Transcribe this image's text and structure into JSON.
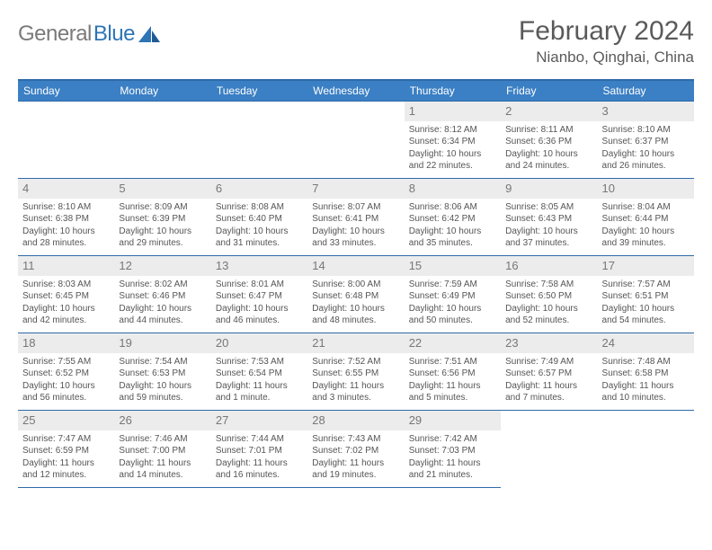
{
  "logo": {
    "word1": "General",
    "word2": "Blue"
  },
  "title": "February 2024",
  "location": "Nianbo, Qinghai, China",
  "weekdays": [
    "Sunday",
    "Monday",
    "Tuesday",
    "Wednesday",
    "Thursday",
    "Friday",
    "Saturday"
  ],
  "colors": {
    "header_bg": "#3b7fc4",
    "header_border": "#2e6aa8",
    "daynum_bg": "#ececec",
    "text": "#555"
  },
  "weeks": [
    [
      null,
      null,
      null,
      null,
      {
        "n": "1",
        "sr": "8:12 AM",
        "ss": "6:34 PM",
        "dl": "10 hours and 22 minutes."
      },
      {
        "n": "2",
        "sr": "8:11 AM",
        "ss": "6:36 PM",
        "dl": "10 hours and 24 minutes."
      },
      {
        "n": "3",
        "sr": "8:10 AM",
        "ss": "6:37 PM",
        "dl": "10 hours and 26 minutes."
      }
    ],
    [
      {
        "n": "4",
        "sr": "8:10 AM",
        "ss": "6:38 PM",
        "dl": "10 hours and 28 minutes."
      },
      {
        "n": "5",
        "sr": "8:09 AM",
        "ss": "6:39 PM",
        "dl": "10 hours and 29 minutes."
      },
      {
        "n": "6",
        "sr": "8:08 AM",
        "ss": "6:40 PM",
        "dl": "10 hours and 31 minutes."
      },
      {
        "n": "7",
        "sr": "8:07 AM",
        "ss": "6:41 PM",
        "dl": "10 hours and 33 minutes."
      },
      {
        "n": "8",
        "sr": "8:06 AM",
        "ss": "6:42 PM",
        "dl": "10 hours and 35 minutes."
      },
      {
        "n": "9",
        "sr": "8:05 AM",
        "ss": "6:43 PM",
        "dl": "10 hours and 37 minutes."
      },
      {
        "n": "10",
        "sr": "8:04 AM",
        "ss": "6:44 PM",
        "dl": "10 hours and 39 minutes."
      }
    ],
    [
      {
        "n": "11",
        "sr": "8:03 AM",
        "ss": "6:45 PM",
        "dl": "10 hours and 42 minutes."
      },
      {
        "n": "12",
        "sr": "8:02 AM",
        "ss": "6:46 PM",
        "dl": "10 hours and 44 minutes."
      },
      {
        "n": "13",
        "sr": "8:01 AM",
        "ss": "6:47 PM",
        "dl": "10 hours and 46 minutes."
      },
      {
        "n": "14",
        "sr": "8:00 AM",
        "ss": "6:48 PM",
        "dl": "10 hours and 48 minutes."
      },
      {
        "n": "15",
        "sr": "7:59 AM",
        "ss": "6:49 PM",
        "dl": "10 hours and 50 minutes."
      },
      {
        "n": "16",
        "sr": "7:58 AM",
        "ss": "6:50 PM",
        "dl": "10 hours and 52 minutes."
      },
      {
        "n": "17",
        "sr": "7:57 AM",
        "ss": "6:51 PM",
        "dl": "10 hours and 54 minutes."
      }
    ],
    [
      {
        "n": "18",
        "sr": "7:55 AM",
        "ss": "6:52 PM",
        "dl": "10 hours and 56 minutes."
      },
      {
        "n": "19",
        "sr": "7:54 AM",
        "ss": "6:53 PM",
        "dl": "10 hours and 59 minutes."
      },
      {
        "n": "20",
        "sr": "7:53 AM",
        "ss": "6:54 PM",
        "dl": "11 hours and 1 minute."
      },
      {
        "n": "21",
        "sr": "7:52 AM",
        "ss": "6:55 PM",
        "dl": "11 hours and 3 minutes."
      },
      {
        "n": "22",
        "sr": "7:51 AM",
        "ss": "6:56 PM",
        "dl": "11 hours and 5 minutes."
      },
      {
        "n": "23",
        "sr": "7:49 AM",
        "ss": "6:57 PM",
        "dl": "11 hours and 7 minutes."
      },
      {
        "n": "24",
        "sr": "7:48 AM",
        "ss": "6:58 PM",
        "dl": "11 hours and 10 minutes."
      }
    ],
    [
      {
        "n": "25",
        "sr": "7:47 AM",
        "ss": "6:59 PM",
        "dl": "11 hours and 12 minutes."
      },
      {
        "n": "26",
        "sr": "7:46 AM",
        "ss": "7:00 PM",
        "dl": "11 hours and 14 minutes."
      },
      {
        "n": "27",
        "sr": "7:44 AM",
        "ss": "7:01 PM",
        "dl": "11 hours and 16 minutes."
      },
      {
        "n": "28",
        "sr": "7:43 AM",
        "ss": "7:02 PM",
        "dl": "11 hours and 19 minutes."
      },
      {
        "n": "29",
        "sr": "7:42 AM",
        "ss": "7:03 PM",
        "dl": "11 hours and 21 minutes."
      },
      null,
      null
    ]
  ],
  "labels": {
    "sunrise": "Sunrise: ",
    "sunset": "Sunset: ",
    "daylight": "Daylight: "
  }
}
